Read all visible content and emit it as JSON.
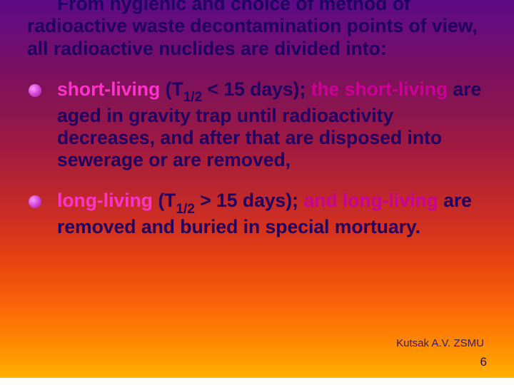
{
  "intro": {
    "line1": "From hygienic and choice of method of",
    "rest": "radioactive waste decontamination points of view, all radioactive nuclides are divided into:"
  },
  "bullet1": {
    "kw1": "short-living",
    "t1": " (T",
    "sub": "1/2",
    "t2": " < 15 days); ",
    "kw2": "the short-living",
    "t3": " are aged in gravity trap until radioactivity decreases, and after that are disposed into sewerage or are removed,"
  },
  "bullet2": {
    "kw1": "long-living",
    "t1": " (T",
    "sub": "1/2",
    "t2": " > 15 days); ",
    "kw2": "and long-living",
    "t3": " are removed and buried in special mortuary."
  },
  "footer": {
    "author": "Kutsak A.V. ZSMU",
    "page": "6"
  }
}
